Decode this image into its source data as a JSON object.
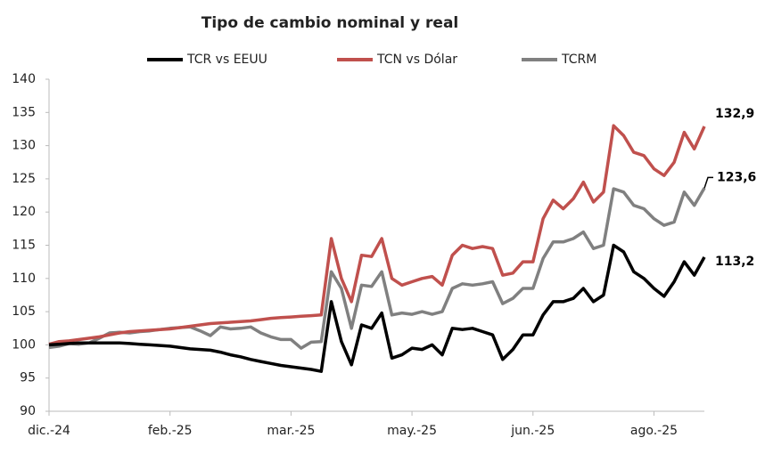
{
  "chart_data": {
    "type": "line",
    "title": "Tipo de cambio nominal y real",
    "categories": [
      "dic.-24",
      null,
      null,
      null,
      null,
      null,
      null,
      null,
      null,
      null,
      null,
      null,
      "feb.-25",
      null,
      null,
      null,
      null,
      null,
      null,
      null,
      null,
      null,
      null,
      null,
      "mar.-25",
      null,
      null,
      null,
      null,
      null,
      null,
      null,
      null,
      null,
      null,
      null,
      "may.-25",
      null,
      null,
      null,
      null,
      null,
      null,
      null,
      null,
      null,
      null,
      null,
      "jun.-25",
      null,
      null,
      null,
      null,
      null,
      null,
      null,
      null,
      null,
      null,
      null,
      "ago.-25",
      null,
      null,
      null,
      null,
      null
    ],
    "series": [
      {
        "name": "TCR vs EEUU",
        "color": "#000000",
        "values": [
          100,
          100.1,
          100.2,
          100.3,
          100.3,
          100.3,
          100.3,
          100.3,
          100.2,
          100.1,
          100,
          99.9,
          99.8,
          99.6,
          99.4,
          99.3,
          99.2,
          98.9,
          98.5,
          98.2,
          97.8,
          97.5,
          97.2,
          96.9,
          96.7,
          96.5,
          96.3,
          96,
          106.5,
          100.5,
          97,
          103,
          102.5,
          104.8,
          98,
          98.5,
          99.5,
          99.3,
          100,
          98.5,
          102.5,
          102.3,
          102.5,
          102,
          101.5,
          97.8,
          99.3,
          101.5,
          101.5,
          104.5,
          106.5,
          106.5,
          107,
          108.5,
          106.5,
          107.5,
          115,
          114,
          111,
          110,
          108.5,
          107.3,
          109.5,
          112.5,
          110.5,
          113.2
        ],
        "value_labels": [
          null,
          null,
          null,
          null,
          null,
          null,
          null,
          null,
          null,
          null,
          null,
          null,
          null,
          null,
          null,
          null,
          null,
          null,
          null,
          null,
          null,
          null,
          null,
          null,
          null,
          null,
          null,
          null,
          null,
          null,
          null,
          null,
          null,
          null,
          null,
          null,
          null,
          null,
          null,
          null,
          null,
          null,
          null,
          null,
          null,
          null,
          null,
          null,
          null,
          null,
          null,
          null,
          null,
          null,
          null,
          null,
          null,
          null,
          null,
          null,
          null,
          null,
          null,
          null,
          null,
          "113,2"
        ]
      },
      {
        "name": "TCN vs Dólar",
        "color": "#c0504d",
        "values": [
          100.1,
          100.5,
          100.6,
          100.8,
          101,
          101.2,
          101.5,
          101.8,
          102,
          102.1,
          102.2,
          102.3,
          102.4,
          102.6,
          102.8,
          103,
          103.2,
          103.3,
          103.4,
          103.5,
          103.6,
          103.8,
          104,
          104.1,
          104.2,
          104.3,
          104.4,
          104.5,
          116,
          110,
          106.5,
          113.5,
          113.3,
          116,
          110,
          109,
          109.5,
          110,
          110.3,
          109,
          113.5,
          115,
          114.5,
          114.8,
          114.5,
          110.5,
          110.8,
          112.5,
          112.5,
          119,
          121.8,
          120.5,
          122,
          124.5,
          121.5,
          123,
          133,
          131.5,
          129,
          128.5,
          126.5,
          125.5,
          127.5,
          132,
          129.5,
          132.9
        ],
        "value_labels": [
          null,
          null,
          null,
          null,
          null,
          null,
          null,
          null,
          null,
          null,
          null,
          null,
          null,
          null,
          null,
          null,
          null,
          null,
          null,
          null,
          null,
          null,
          null,
          null,
          null,
          null,
          null,
          null,
          null,
          null,
          null,
          null,
          null,
          null,
          null,
          null,
          null,
          null,
          null,
          null,
          null,
          null,
          null,
          null,
          null,
          null,
          null,
          null,
          null,
          null,
          null,
          null,
          null,
          null,
          null,
          null,
          null,
          null,
          null,
          null,
          null,
          null,
          null,
          null,
          null,
          "132,9"
        ]
      },
      {
        "name": "TCRM",
        "color": "#808080",
        "values": [
          99.6,
          99.8,
          100.2,
          100.1,
          100.3,
          101,
          101.8,
          101.9,
          101.8,
          102,
          102.1,
          102.3,
          102.5,
          102.6,
          102.7,
          102.1,
          101.4,
          102.7,
          102.4,
          102.5,
          102.7,
          101.8,
          101.2,
          100.8,
          100.8,
          99.5,
          100.4,
          100.5,
          111,
          108.5,
          102.5,
          109,
          108.8,
          111,
          104.5,
          104.8,
          104.6,
          105,
          104.6,
          105,
          108.5,
          109.2,
          109,
          109.2,
          109.5,
          106.2,
          107,
          108.5,
          108.5,
          113,
          115.5,
          115.5,
          116,
          117,
          114.5,
          115,
          123.5,
          123,
          121,
          120.5,
          119,
          118,
          118.5,
          123,
          121,
          123.6
        ],
        "value_labels": [
          null,
          null,
          null,
          null,
          null,
          null,
          null,
          null,
          null,
          null,
          null,
          null,
          null,
          null,
          null,
          null,
          null,
          null,
          null,
          null,
          null,
          null,
          null,
          null,
          null,
          null,
          null,
          null,
          null,
          null,
          null,
          null,
          null,
          null,
          null,
          null,
          null,
          null,
          null,
          null,
          null,
          null,
          null,
          null,
          null,
          null,
          null,
          null,
          null,
          null,
          null,
          null,
          null,
          null,
          null,
          null,
          null,
          null,
          null,
          null,
          null,
          null,
          null,
          null,
          null,
          "123,6"
        ]
      }
    ],
    "ylim": [
      90,
      140
    ],
    "yticks": [
      90,
      95,
      100,
      105,
      110,
      115,
      120,
      125,
      130,
      135,
      140
    ],
    "grid": false
  }
}
